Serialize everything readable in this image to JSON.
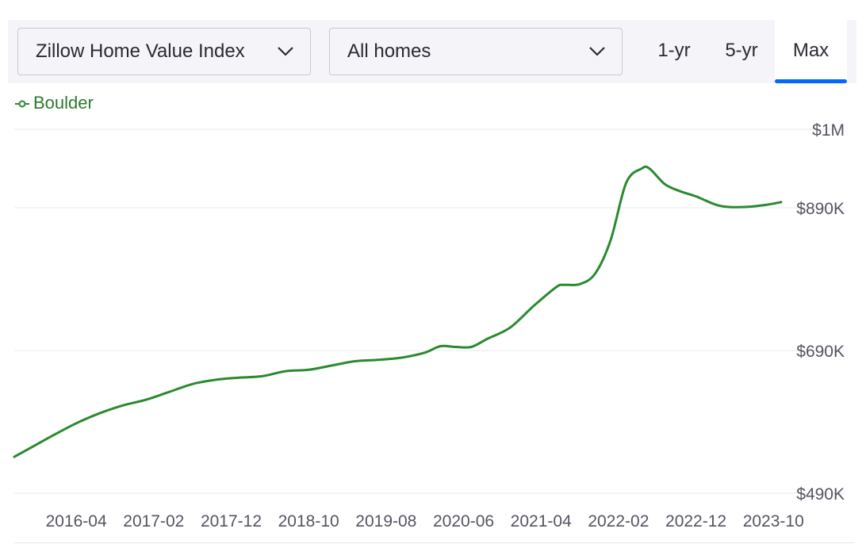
{
  "controls": {
    "metric_dropdown": "Zillow Home Value Index",
    "home_type_dropdown": "All homes",
    "tabs": [
      {
        "label": "1-yr",
        "active": false
      },
      {
        "label": "5-yr",
        "active": false
      },
      {
        "label": "Max",
        "active": true
      }
    ]
  },
  "colors": {
    "series": "#2a8a2e",
    "accent": "#006aff",
    "grid": "#e8e8ec",
    "control_bg": "#f4f4f9"
  },
  "chart_data": {
    "type": "line",
    "ylim": [
      490000,
      1000000
    ],
    "y_ticks": [
      490000,
      690000,
      890000,
      1000000
    ],
    "y_tick_labels": [
      "$490K",
      "$690K",
      "$890K",
      "$1M"
    ],
    "x_tick_labels": [
      "2016-04",
      "2017-02",
      "2017-12",
      "2018-10",
      "2019-08",
      "2020-06",
      "2021-04",
      "2022-02",
      "2022-12",
      "2023-10"
    ],
    "x_range": [
      "2015-08",
      "2023-11"
    ],
    "grid": true,
    "legend": "top-left",
    "series": [
      {
        "name": "Boulder",
        "x": [
          "2015-08",
          "2015-10",
          "2016-01",
          "2016-04",
          "2016-07",
          "2016-10",
          "2017-01",
          "2017-04",
          "2017-07",
          "2017-10",
          "2018-01",
          "2018-04",
          "2018-07",
          "2018-10",
          "2019-01",
          "2019-04",
          "2019-07",
          "2019-10",
          "2020-01",
          "2020-03",
          "2020-05",
          "2020-07",
          "2020-09",
          "2020-12",
          "2021-03",
          "2021-06",
          "2021-07",
          "2021-09",
          "2021-11",
          "2022-01",
          "2022-03",
          "2022-05",
          "2022-06",
          "2022-08",
          "2022-10",
          "2022-12",
          "2023-03",
          "2023-06",
          "2023-09",
          "2023-11"
        ],
        "y": [
          541000,
          553000,
          571000,
          588000,
          602000,
          613000,
          621000,
          632000,
          643000,
          649000,
          652000,
          654000,
          661000,
          663000,
          669000,
          675000,
          677000,
          680000,
          687000,
          696000,
          695000,
          695000,
          706000,
          722000,
          752000,
          779000,
          782000,
          783000,
          798000,
          845000,
          925000,
          945000,
          945000,
          923000,
          913000,
          906000,
          893000,
          891000,
          894000,
          898000
        ]
      }
    ]
  }
}
